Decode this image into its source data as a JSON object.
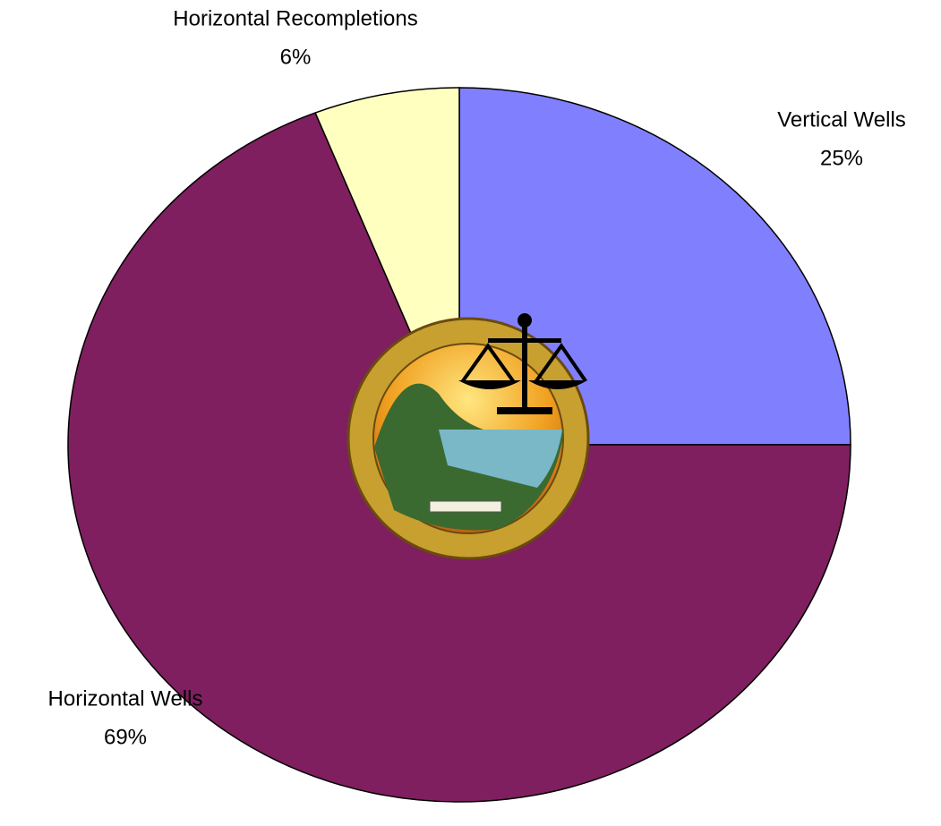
{
  "chart_data": {
    "type": "pie",
    "categories": [
      "Vertical Wells",
      "Horizontal Wells",
      "Horizontal Recompletions"
    ],
    "values": [
      25,
      69,
      6
    ],
    "value_labels": [
      "25%",
      "69%",
      "6%"
    ],
    "colors": [
      "#8080ff",
      "#7f1f5f",
      "#ffffc0"
    ]
  }
}
